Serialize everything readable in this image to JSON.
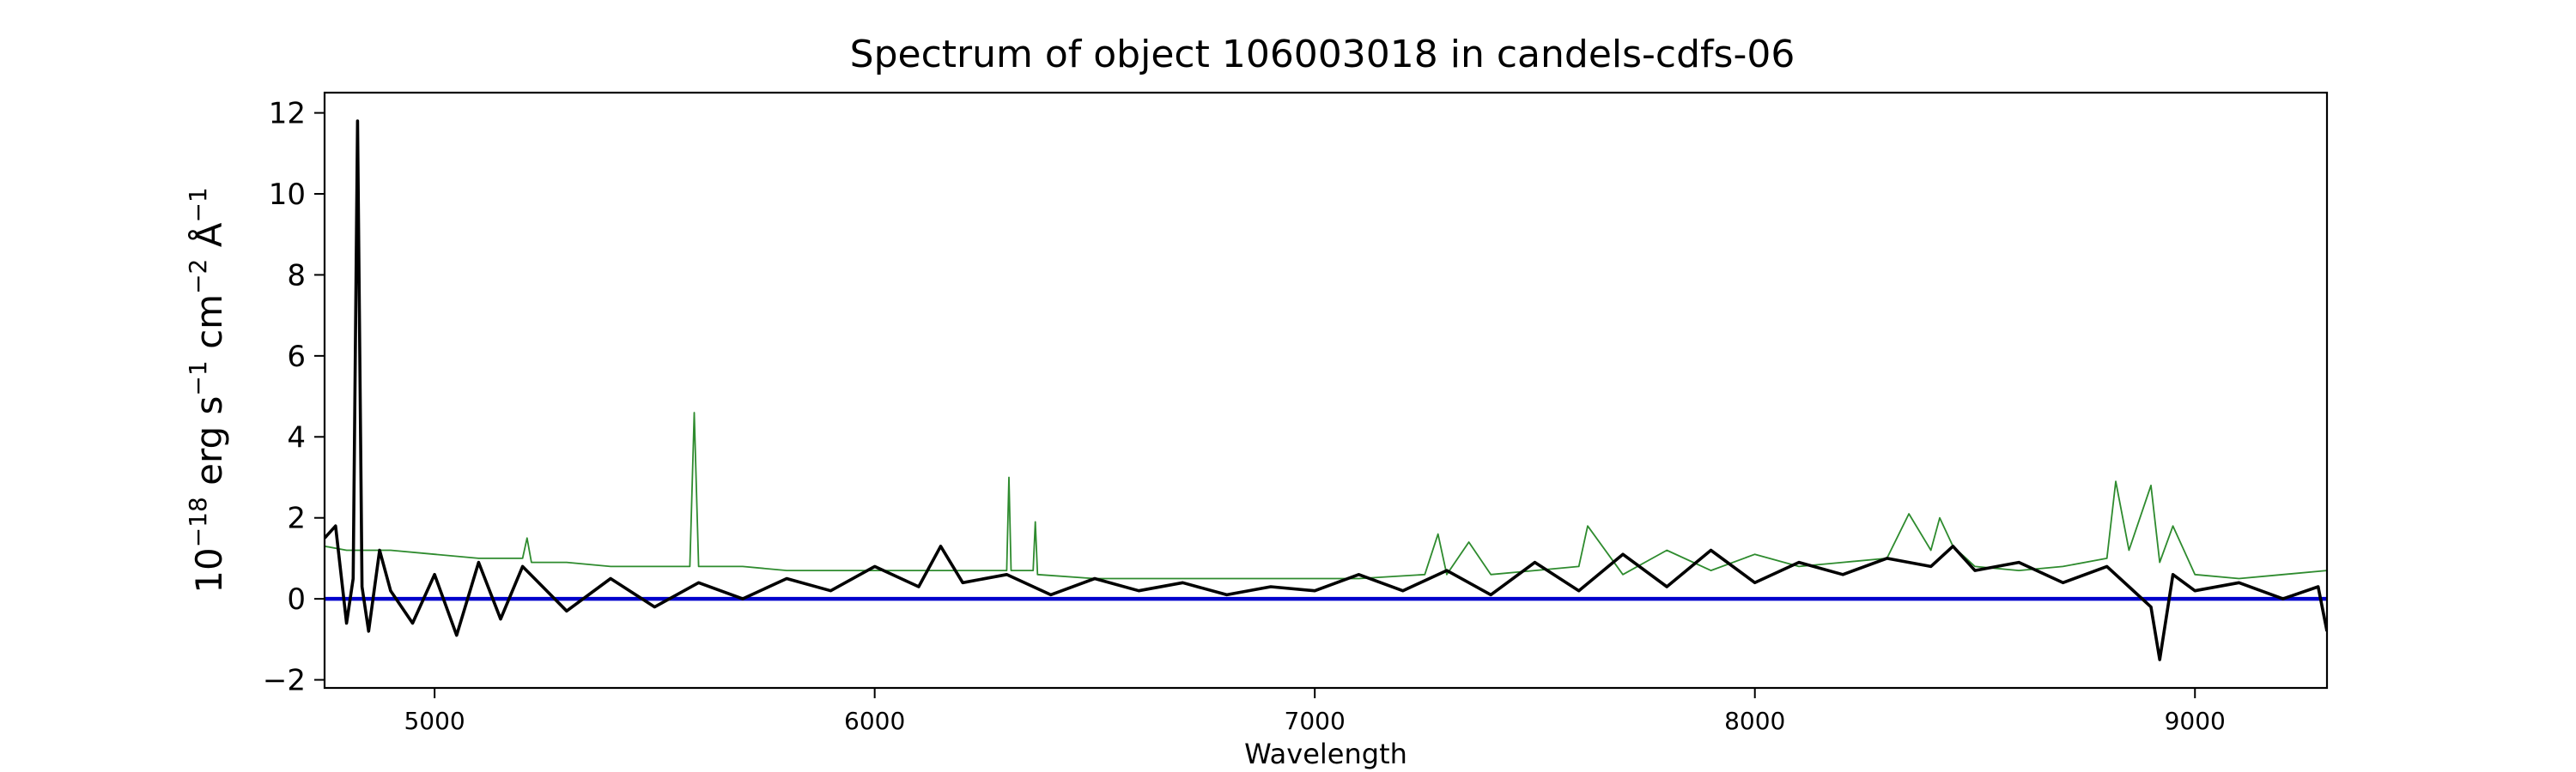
{
  "chart_data": {
    "type": "line",
    "title": "Spectrum of object 106003018 in candels-cdfs-06",
    "xlabel": "Wavelength",
    "ylabel": {
      "base": "10",
      "exp": "−18",
      "t1": " erg s",
      "exp2": "−1",
      "t2": " cm",
      "exp3": "−2",
      "t3": " Å",
      "exp4": "−1"
    },
    "xlim": [
      4750,
      9300
    ],
    "ylim": [
      -2.2,
      12.5
    ],
    "xticks": [
      5000,
      6000,
      7000,
      8000,
      9000
    ],
    "xtick_labels": [
      "5000",
      "6000",
      "7000",
      "8000",
      "9000"
    ],
    "yticks": [
      -2,
      0,
      2,
      4,
      6,
      8,
      10,
      12
    ],
    "ytick_labels": [
      "−2",
      "0",
      "2",
      "4",
      "6",
      "8",
      "10",
      "12"
    ],
    "grid": false,
    "legend": "none",
    "colors": {
      "flux": "#000000",
      "error": "#2e8b2e",
      "zero": "#0000cc"
    },
    "series": [
      {
        "role": "flux",
        "x": [
          4750,
          4775,
          4800,
          4815,
          4825,
          4835,
          4850,
          4875,
          4900,
          4950,
          5000,
          5050,
          5100,
          5150,
          5200,
          5300,
          5400,
          5500,
          5600,
          5700,
          5800,
          5900,
          6000,
          6100,
          6150,
          6200,
          6300,
          6400,
          6500,
          6600,
          6700,
          6800,
          6900,
          7000,
          7100,
          7200,
          7300,
          7400,
          7500,
          7600,
          7700,
          7800,
          7900,
          8000,
          8100,
          8200,
          8300,
          8400,
          8450,
          8500,
          8600,
          8700,
          8800,
          8850,
          8900,
          8920,
          8950,
          9000,
          9100,
          9200,
          9280,
          9300
        ],
        "y": [
          1.5,
          1.8,
          -0.6,
          0.5,
          11.8,
          0.3,
          -0.8,
          1.2,
          0.2,
          -0.6,
          0.6,
          -0.9,
          0.9,
          -0.5,
          0.8,
          -0.3,
          0.5,
          -0.2,
          0.4,
          0.0,
          0.5,
          0.2,
          0.8,
          0.3,
          1.3,
          0.4,
          0.6,
          0.1,
          0.5,
          0.2,
          0.4,
          0.1,
          0.3,
          0.2,
          0.6,
          0.2,
          0.7,
          0.1,
          0.9,
          0.2,
          1.1,
          0.3,
          1.2,
          0.4,
          0.9,
          0.6,
          1.0,
          0.8,
          1.3,
          0.7,
          0.9,
          0.4,
          0.8,
          0.3,
          -0.2,
          -1.5,
          0.6,
          0.2,
          0.4,
          0.0,
          0.3,
          -0.8
        ]
      },
      {
        "role": "error",
        "x": [
          4750,
          4800,
          4900,
          5000,
          5100,
          5200,
          5210,
          5220,
          5300,
          5400,
          5500,
          5580,
          5590,
          5600,
          5700,
          5800,
          6000,
          6200,
          6300,
          6305,
          6310,
          6360,
          6365,
          6370,
          6500,
          6700,
          6900,
          7100,
          7250,
          7280,
          7300,
          7350,
          7400,
          7500,
          7600,
          7620,
          7700,
          7800,
          7900,
          8000,
          8100,
          8200,
          8300,
          8350,
          8400,
          8420,
          8450,
          8500,
          8600,
          8700,
          8800,
          8820,
          8850,
          8900,
          8920,
          8950,
          9000,
          9100,
          9200,
          9300
        ],
        "y": [
          1.3,
          1.2,
          1.2,
          1.1,
          1.0,
          1.0,
          1.5,
          0.9,
          0.9,
          0.8,
          0.8,
          0.8,
          4.6,
          0.8,
          0.8,
          0.7,
          0.7,
          0.7,
          0.7,
          3.0,
          0.7,
          0.7,
          1.9,
          0.6,
          0.5,
          0.5,
          0.5,
          0.5,
          0.6,
          1.6,
          0.6,
          1.4,
          0.6,
          0.7,
          0.8,
          1.8,
          0.6,
          1.2,
          0.7,
          1.1,
          0.8,
          0.9,
          1.0,
          2.1,
          1.2,
          2.0,
          1.3,
          0.8,
          0.7,
          0.8,
          1.0,
          2.9,
          1.2,
          2.8,
          0.9,
          1.8,
          0.6,
          0.5,
          0.6,
          0.7
        ]
      },
      {
        "role": "zero",
        "x": [
          4750,
          9300
        ],
        "y": [
          0,
          0
        ]
      }
    ]
  }
}
